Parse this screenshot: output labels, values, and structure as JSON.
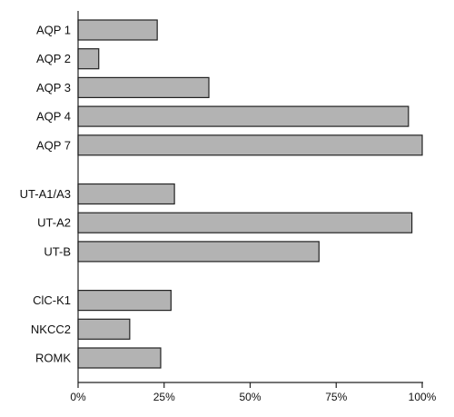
{
  "chart_data": {
    "type": "bar",
    "orientation": "horizontal",
    "categories": [
      "AQP 1",
      "AQP 2",
      "AQP 3",
      "AQP 4",
      "AQP 7",
      "UT-A1/A3",
      "UT-A2",
      "UT-B",
      "ClC-K1",
      "NKCC2",
      "ROMK"
    ],
    "groups": [
      [
        "AQP 1",
        "AQP 2",
        "AQP 3",
        "AQP 4",
        "AQP 7"
      ],
      [
        "UT-A1/A3",
        "UT-A2",
        "UT-B"
      ],
      [
        "ClC-K1",
        "NKCC2",
        "ROMK"
      ]
    ],
    "values": [
      23,
      6,
      38,
      96,
      100,
      28,
      97,
      70,
      27,
      15,
      24
    ],
    "xlim": [
      0,
      100
    ],
    "xticks": [
      0,
      25,
      50,
      75,
      100
    ],
    "xtick_labels": [
      "0%",
      "25%",
      "50%",
      "75%",
      "100%"
    ],
    "grid": false,
    "title": "",
    "xlabel": "",
    "ylabel": "",
    "colors": {
      "bar_fill": "#b3b3b3",
      "bar_stroke": "#222222",
      "axis": "#222222"
    }
  }
}
